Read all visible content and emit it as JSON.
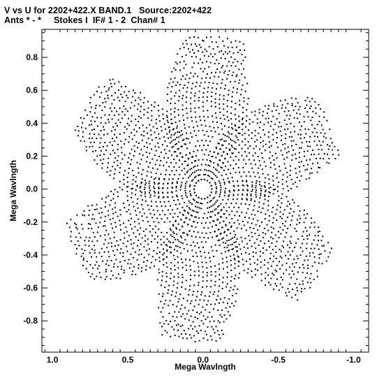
{
  "title": {
    "line1": "V vs U for 2202+422.X BAND.1   Source:2202+422",
    "line2": "Ants * - *     Stokes I  IF# 1 - 2  Chan# 1"
  },
  "chart_data": {
    "type": "scatter",
    "xlabel": "Mega Wavlngth",
    "ylabel": "Mega Wavlngth",
    "xlim": [
      1.07,
      -1.1
    ],
    "ylim": [
      -0.99,
      0.97
    ],
    "x_reversed": true,
    "grid": false,
    "legend": "none",
    "x_ticks": [
      1.0,
      0.5,
      0.0,
      -0.5,
      -1.0
    ],
    "x_tick_labels": [
      "1.0",
      "0.5",
      "0.0",
      "-0.5",
      "-1.0"
    ],
    "y_ticks": [
      0.8,
      0.6,
      0.4,
      0.2,
      0.0,
      -0.2,
      -0.4,
      -0.6,
      -0.8
    ],
    "y_tick_labels": [
      "0.8",
      "0.6",
      "0.4",
      "0.2",
      "0.0",
      "-0.2",
      "-0.4",
      "-0.6",
      "-0.8"
    ],
    "series": [
      {
        "pattern": "uv-coverage point-symmetric six-armed star (three baseline tracks and their conjugates)",
        "point_color": "#000000",
        "arm_angles_deg": [
          30,
          90,
          150,
          210,
          270,
          330
        ],
        "arm_tip_radius": 0.93,
        "inner_radius": 0.06,
        "approx_point_count": 2300
      }
    ]
  }
}
